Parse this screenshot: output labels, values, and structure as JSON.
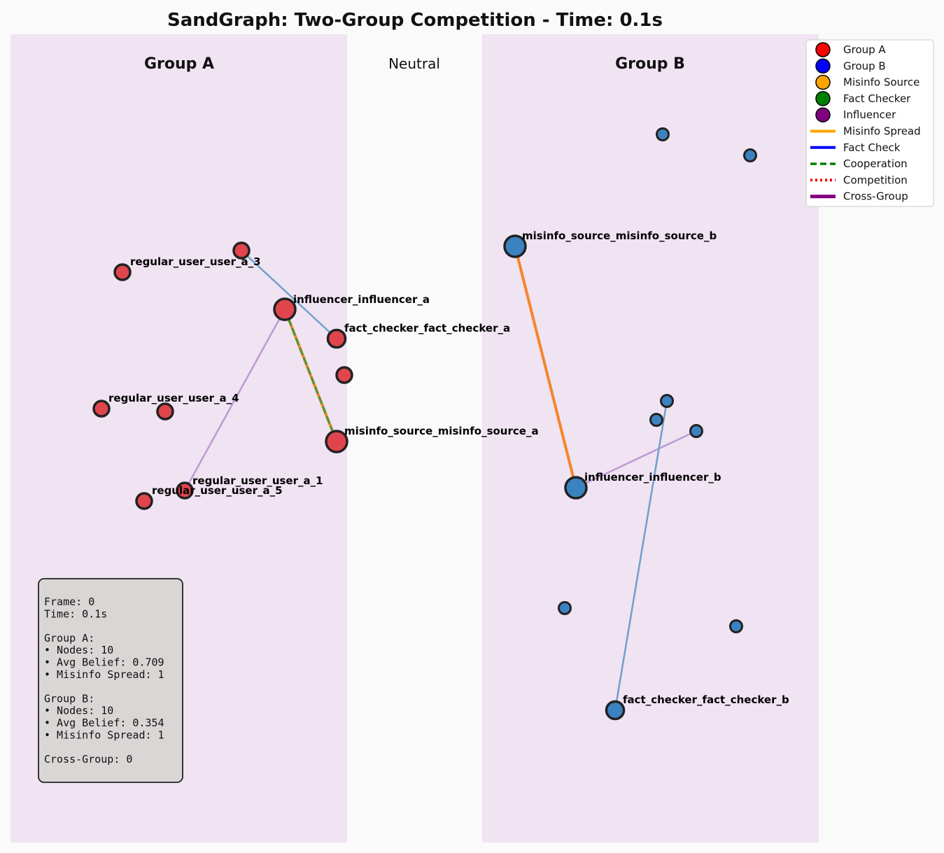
{
  "title": "SandGraph: Two-Group Competition - Time: 0.1s",
  "regions": {
    "group_a": "Group A",
    "neutral": "Neutral",
    "group_b": "Group B"
  },
  "colors": {
    "group_a_node": "#e0454d",
    "group_b_node": "#3b82c0",
    "region_bg": "#f0e3f2",
    "misinfo": "#f7842b",
    "factcheck": "#6fa0cc",
    "cooperation": "#4a9a3a",
    "crossgroup": "#bd9ad4"
  },
  "legend": {
    "items": [
      {
        "label": "Group A",
        "type": "circle",
        "color": "#ff0000"
      },
      {
        "label": "Group B",
        "type": "circle",
        "color": "#0000ff"
      },
      {
        "label": "Misinfo Source",
        "type": "circle",
        "color": "#ffa500"
      },
      {
        "label": "Fact Checker",
        "type": "circle",
        "color": "#008000"
      },
      {
        "label": "Influencer",
        "type": "circle",
        "color": "#800080"
      },
      {
        "label": "Misinfo Spread",
        "type": "line",
        "color": "#ffa500",
        "style": "solid"
      },
      {
        "label": "Fact Check",
        "type": "line",
        "color": "#0000ff",
        "style": "solid"
      },
      {
        "label": "Cooperation",
        "type": "line",
        "color": "#008000",
        "style": "dashed"
      },
      {
        "label": "Competition",
        "type": "line",
        "color": "#ff0000",
        "style": "dotted"
      },
      {
        "label": "Cross-Group",
        "type": "line",
        "color": "#800080",
        "style": "thick"
      }
    ]
  },
  "nodes": [
    {
      "id": "a_user3",
      "group": "A",
      "label": "",
      "size": "small"
    },
    {
      "id": "a_lbl_user3",
      "group": "A",
      "label": "regular_user_user_a_3",
      "size": "small"
    },
    {
      "id": "a_influencer",
      "group": "A",
      "label": "influencer_influencer_a",
      "size": "large"
    },
    {
      "id": "a_factchecker",
      "group": "A",
      "label": "fact_checker_fact_checker_a",
      "size": "medium"
    },
    {
      "id": "a_plain",
      "group": "A",
      "label": "",
      "size": "small"
    },
    {
      "id": "a_user4",
      "group": "A",
      "label": "regular_user_user_a_4",
      "size": "small"
    },
    {
      "id": "a_user4b",
      "group": "A",
      "label": "",
      "size": "small"
    },
    {
      "id": "a_misinfo",
      "group": "A",
      "label": "misinfo_source_misinfo_source_a",
      "size": "large"
    },
    {
      "id": "a_user1",
      "group": "A",
      "label": "regular_user_user_a_1",
      "size": "small"
    },
    {
      "id": "a_user5",
      "group": "A",
      "label": "regular_user_user_a_5",
      "size": "small"
    },
    {
      "id": "b_top1",
      "group": "B",
      "label": "",
      "size": "tiny"
    },
    {
      "id": "b_top2",
      "group": "B",
      "label": "",
      "size": "tiny"
    },
    {
      "id": "b_misinfo",
      "group": "B",
      "label": "misinfo_source_misinfo_source_b",
      "size": "large"
    },
    {
      "id": "b_mid1",
      "group": "B",
      "label": "",
      "size": "tiny"
    },
    {
      "id": "b_mid2",
      "group": "B",
      "label": "",
      "size": "tiny"
    },
    {
      "id": "b_mid3",
      "group": "B",
      "label": "",
      "size": "tiny"
    },
    {
      "id": "b_influencer",
      "group": "B",
      "label": "influencer_influencer_b",
      "size": "large"
    },
    {
      "id": "b_low1",
      "group": "B",
      "label": "",
      "size": "tiny"
    },
    {
      "id": "b_low2",
      "group": "B",
      "label": "",
      "size": "tiny"
    },
    {
      "id": "b_factchecker",
      "group": "B",
      "label": "fact_checker_fact_checker_b",
      "size": "medium"
    }
  ],
  "edges": [
    {
      "from": "a_user3",
      "to": "a_factchecker",
      "type": "factcheck"
    },
    {
      "from": "a_influencer",
      "to": "a_misinfo",
      "type": "misinfo"
    },
    {
      "from": "a_influencer",
      "to": "a_misinfo",
      "type": "cooperation"
    },
    {
      "from": "a_influencer",
      "to": "a_user1",
      "type": "crossgroup"
    },
    {
      "from": "b_misinfo",
      "to": "b_influencer",
      "type": "misinfo"
    },
    {
      "from": "b_influencer",
      "to": "b_mid3",
      "type": "crossgroup"
    },
    {
      "from": "b_mid1",
      "to": "b_factchecker",
      "type": "factcheck"
    }
  ],
  "stats": {
    "lines": [
      "Frame: 0",
      "Time: 0.1s",
      "",
      "Group A:",
      "• Nodes: 10",
      "• Avg Belief: 0.709",
      "• Misinfo Spread: 1",
      "",
      "Group B:",
      "• Nodes: 10",
      "• Avg Belief: 0.354",
      "• Misinfo Spread: 1",
      "",
      "Cross-Group: 0"
    ]
  }
}
